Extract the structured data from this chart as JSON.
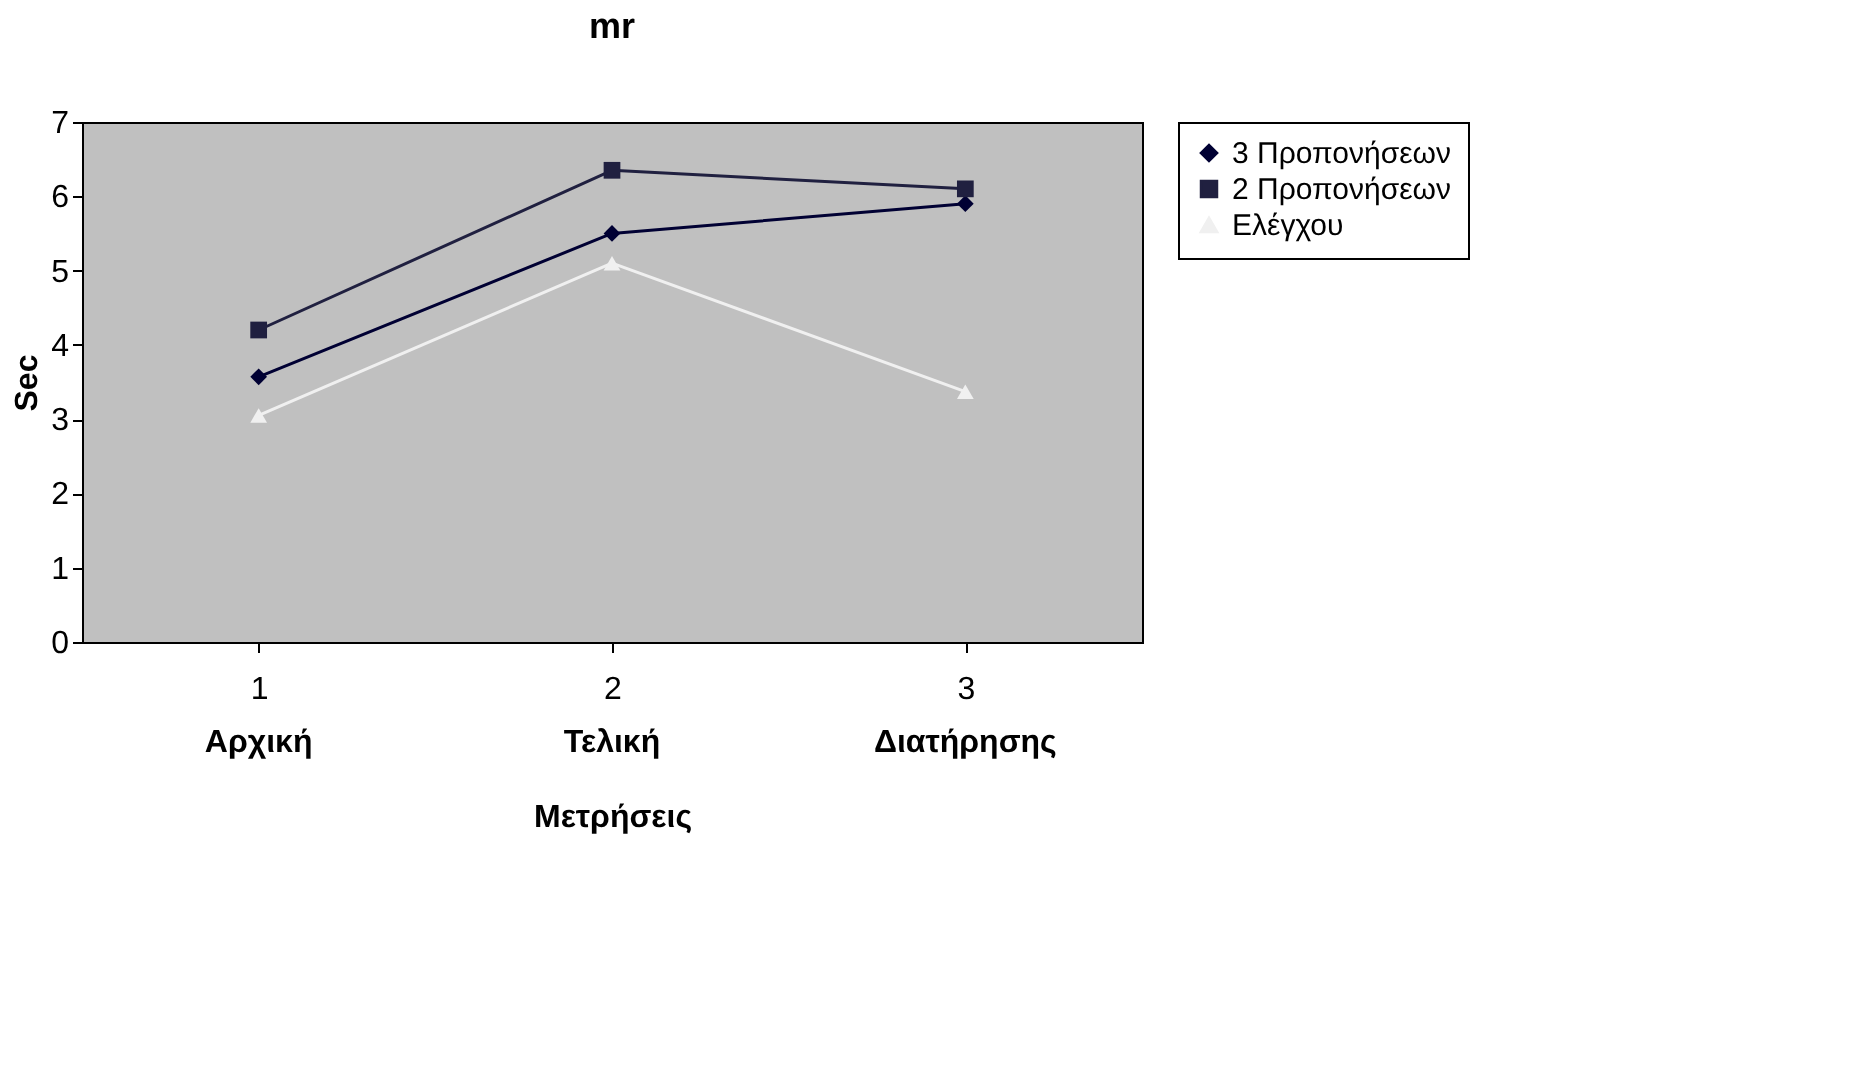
{
  "chart_data": {
    "type": "line",
    "title": "mr",
    "ylabel": "Sec",
    "xlabel": "Μετρήσεις",
    "categories": [
      "1",
      "2",
      "3"
    ],
    "series": [
      {
        "name": "3 Προπονήσεων",
        "color": "#000033",
        "marker": "diamond",
        "values": [
          3.57,
          5.5,
          5.9
        ]
      },
      {
        "name": "2 Προπονήσεων",
        "color": "#202040",
        "marker": "square",
        "values": [
          4.2,
          6.35,
          6.1
        ]
      },
      {
        "name": "Ελέγχου",
        "color": "#f0f0f0",
        "marker": "triangle",
        "values": [
          3.05,
          5.1,
          3.37
        ]
      }
    ],
    "ylim": [
      0,
      7
    ],
    "yticks": [
      0,
      1,
      2,
      3,
      4,
      5,
      6,
      7
    ],
    "grid": false,
    "legend": "right",
    "line_style": "solid",
    "annotations": [
      "Αρχική",
      "Τελική",
      "Διατήρησης"
    ]
  }
}
